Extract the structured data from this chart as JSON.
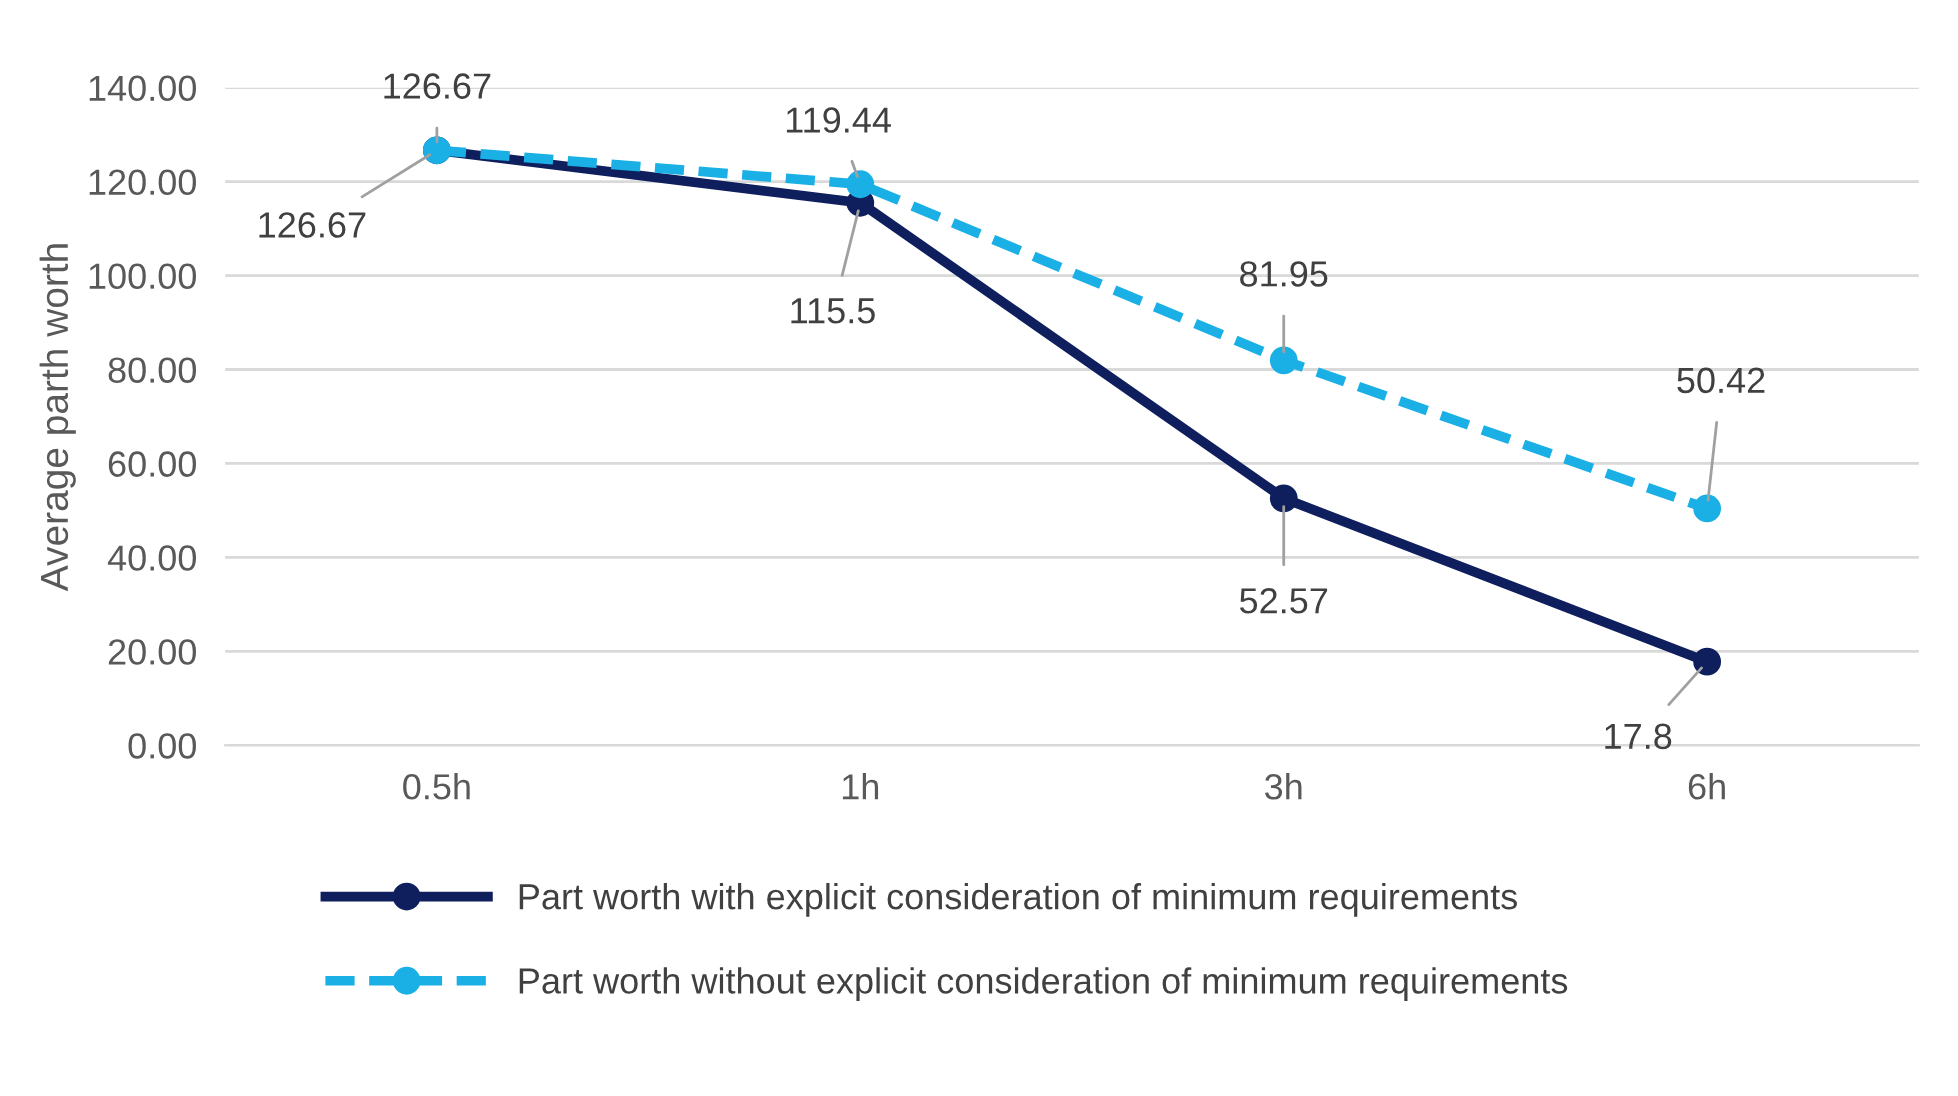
{
  "chart_data": {
    "type": "line",
    "ylabel": "Average parth worth",
    "categories": [
      "0.5h",
      "1h",
      "3h",
      "6h"
    ],
    "series": [
      {
        "name": "Part worth with explicit consideration of minimum requirements",
        "color": "#0f1f5e",
        "values": [
          126.67,
          115.5,
          52.57,
          17.8
        ],
        "line_style": "solid"
      },
      {
        "name": "Part worth without explicit consideration of minimum requirements",
        "color": "#1ab0e6",
        "values": [
          126.67,
          119.44,
          81.95,
          50.42
        ],
        "line_style": "dashed"
      }
    ],
    "ylim": [
      0,
      140
    ],
    "yticks": [
      {
        "value": 0,
        "label": "0.00"
      },
      {
        "value": 20,
        "label": "20.00"
      },
      {
        "value": 40,
        "label": "40.00"
      },
      {
        "value": 60,
        "label": "60.00"
      },
      {
        "value": 80,
        "label": "80.00"
      },
      {
        "value": 100,
        "label": "100.00"
      },
      {
        "value": 120,
        "label": "120.00"
      },
      {
        "value": 140,
        "label": "140.00"
      }
    ],
    "grid": "y",
    "legend": "bottom",
    "marker": "circle",
    "data_labels": true
  }
}
